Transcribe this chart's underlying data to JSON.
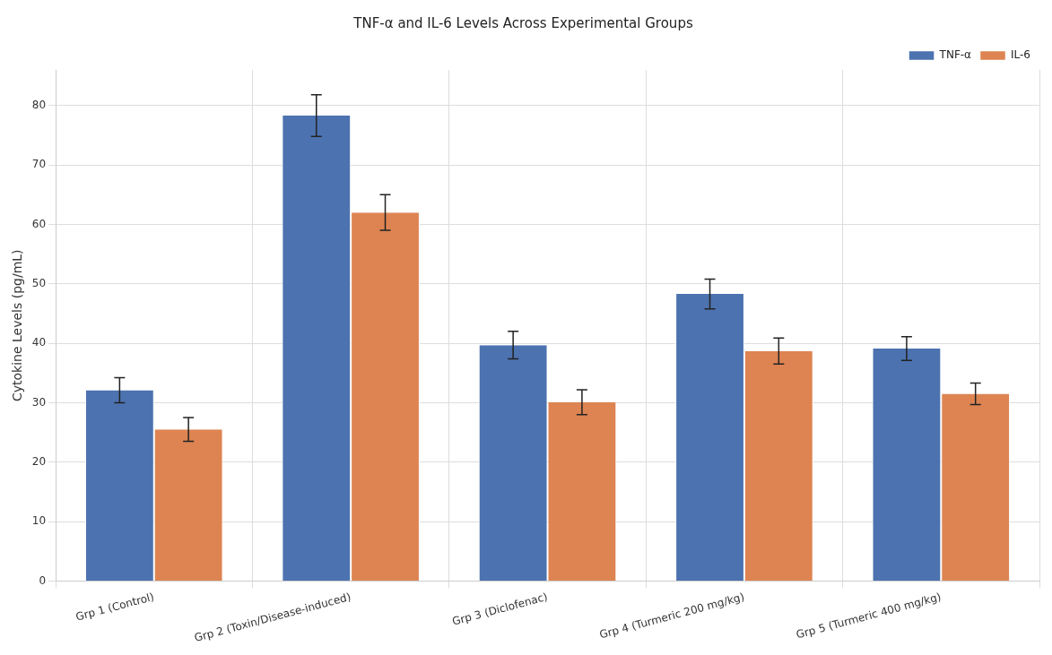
{
  "chart_data": {
    "type": "bar",
    "title": "TNF-α and IL-6 Levels Across Experimental Groups",
    "ylabel": "Cytokine Levels (pg/mL)",
    "categories": [
      "Grp 1 (Control)",
      "Grp 2 (Toxin/Disease-induced)",
      "Grp 3 (Diclofenac)",
      "Grp 4 (Turmeric 200 mg/kg)",
      "Grp 5 (Turmeric 400 mg/kg)"
    ],
    "series": [
      {
        "name": "TNF-α",
        "color": "#4c72b0",
        "values": [
          32.1,
          78.3,
          39.7,
          48.3,
          39.1
        ],
        "errors": [
          2.1,
          3.5,
          2.3,
          2.5,
          2.0
        ]
      },
      {
        "name": "IL-6",
        "color": "#dd8452",
        "values": [
          25.5,
          62.0,
          30.1,
          38.7,
          31.5
        ],
        "errors": [
          2.0,
          3.0,
          2.1,
          2.2,
          1.8
        ]
      }
    ],
    "ylim": [
      0,
      86
    ],
    "yticks": [
      0,
      10,
      20,
      30,
      40,
      50,
      60,
      70,
      80
    ],
    "grid": true,
    "legend": "top right"
  }
}
